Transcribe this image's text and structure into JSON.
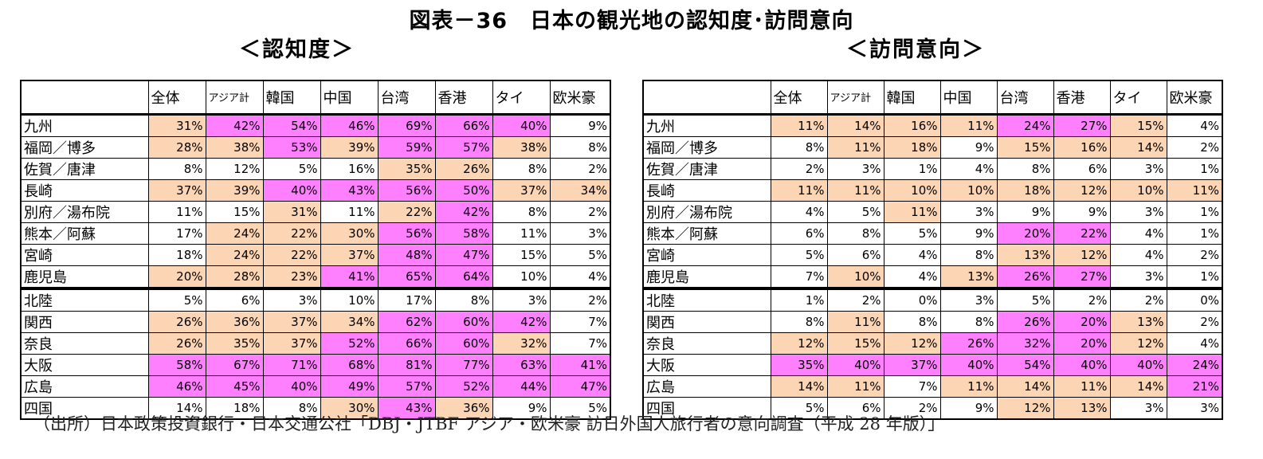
{
  "title": "図表－36　日本の観光地の認知度･訪問意向",
  "source": "（出所）日本政策投資銀行・日本交通公社「DBJ・JTBF アジア・欧米豪 訪日外国人旅行者の意向調査（平成 28 年版）」",
  "colors": {
    "orange": "#fcd5b4",
    "pink": "#ff80ff",
    "white": "#ffffff"
  },
  "chart_data": [
    {
      "type": "table",
      "title": "＜認知度＞",
      "columns": [
        "全体",
        "アジア計",
        "韓国",
        "中国",
        "台湾",
        "香港",
        "タイ",
        "欧米豪"
      ],
      "rows": [
        {
          "name": "九州",
          "values": [
            "31%",
            "42%",
            "54%",
            "46%",
            "69%",
            "66%",
            "40%",
            "9%"
          ],
          "shade": [
            "o",
            "p",
            "p",
            "p",
            "p",
            "p",
            "p",
            "w"
          ]
        },
        {
          "name": "福岡／博多",
          "values": [
            "28%",
            "38%",
            "53%",
            "39%",
            "59%",
            "57%",
            "38%",
            "8%"
          ],
          "shade": [
            "o",
            "o",
            "p",
            "o",
            "p",
            "p",
            "o",
            "w"
          ]
        },
        {
          "name": "佐賀／唐津",
          "values": [
            "8%",
            "12%",
            "5%",
            "16%",
            "35%",
            "26%",
            "8%",
            "2%"
          ],
          "shade": [
            "w",
            "w",
            "w",
            "w",
            "o",
            "o",
            "w",
            "w"
          ]
        },
        {
          "name": "長崎",
          "values": [
            "37%",
            "39%",
            "40%",
            "43%",
            "56%",
            "50%",
            "37%",
            "34%"
          ],
          "shade": [
            "o",
            "o",
            "p",
            "p",
            "p",
            "p",
            "o",
            "o"
          ]
        },
        {
          "name": "別府／湯布院",
          "values": [
            "11%",
            "15%",
            "31%",
            "11%",
            "22%",
            "42%",
            "8%",
            "2%"
          ],
          "shade": [
            "w",
            "w",
            "o",
            "w",
            "o",
            "p",
            "w",
            "w"
          ]
        },
        {
          "name": "熊本／阿蘇",
          "values": [
            "17%",
            "24%",
            "22%",
            "30%",
            "56%",
            "58%",
            "11%",
            "3%"
          ],
          "shade": [
            "w",
            "o",
            "o",
            "o",
            "p",
            "p",
            "w",
            "w"
          ]
        },
        {
          "name": "宮崎",
          "values": [
            "18%",
            "24%",
            "22%",
            "37%",
            "48%",
            "47%",
            "15%",
            "5%"
          ],
          "shade": [
            "w",
            "o",
            "o",
            "o",
            "p",
            "p",
            "w",
            "w"
          ]
        },
        {
          "name": "鹿児島",
          "values": [
            "20%",
            "28%",
            "23%",
            "41%",
            "65%",
            "64%",
            "10%",
            "4%"
          ],
          "shade": [
            "o",
            "o",
            "o",
            "p",
            "p",
            "p",
            "w",
            "w"
          ]
        },
        {
          "name": "北陸",
          "values": [
            "5%",
            "6%",
            "3%",
            "10%",
            "17%",
            "8%",
            "3%",
            "2%"
          ],
          "shade": [
            "w",
            "w",
            "w",
            "w",
            "w",
            "w",
            "w",
            "w"
          ]
        },
        {
          "name": "関西",
          "values": [
            "26%",
            "36%",
            "37%",
            "34%",
            "62%",
            "60%",
            "42%",
            "7%"
          ],
          "shade": [
            "o",
            "o",
            "o",
            "o",
            "p",
            "p",
            "p",
            "w"
          ]
        },
        {
          "name": "奈良",
          "values": [
            "26%",
            "35%",
            "37%",
            "52%",
            "66%",
            "60%",
            "32%",
            "7%"
          ],
          "shade": [
            "o",
            "o",
            "o",
            "p",
            "p",
            "p",
            "o",
            "w"
          ]
        },
        {
          "name": "大阪",
          "values": [
            "58%",
            "67%",
            "71%",
            "68%",
            "81%",
            "77%",
            "63%",
            "41%"
          ],
          "shade": [
            "p",
            "p",
            "p",
            "p",
            "p",
            "p",
            "p",
            "p"
          ]
        },
        {
          "name": "広島",
          "values": [
            "46%",
            "45%",
            "40%",
            "49%",
            "57%",
            "52%",
            "44%",
            "47%"
          ],
          "shade": [
            "p",
            "p",
            "p",
            "p",
            "p",
            "p",
            "p",
            "p"
          ]
        },
        {
          "name": "四国",
          "values": [
            "14%",
            "18%",
            "8%",
            "30%",
            "43%",
            "36%",
            "9%",
            "5%"
          ],
          "shade": [
            "w",
            "w",
            "w",
            "o",
            "p",
            "o",
            "w",
            "w"
          ]
        }
      ]
    },
    {
      "type": "table",
      "title": "＜訪問意向＞",
      "columns": [
        "全体",
        "アジア計",
        "韓国",
        "中国",
        "台湾",
        "香港",
        "タイ",
        "欧米豪"
      ],
      "rows": [
        {
          "name": "九州",
          "values": [
            "11%",
            "14%",
            "16%",
            "11%",
            "24%",
            "27%",
            "15%",
            "4%"
          ],
          "shade": [
            "o",
            "o",
            "o",
            "o",
            "p",
            "p",
            "o",
            "w"
          ]
        },
        {
          "name": "福岡／博多",
          "values": [
            "8%",
            "11%",
            "18%",
            "9%",
            "15%",
            "16%",
            "14%",
            "2%"
          ],
          "shade": [
            "w",
            "o",
            "o",
            "w",
            "o",
            "o",
            "o",
            "w"
          ]
        },
        {
          "name": "佐賀／唐津",
          "values": [
            "2%",
            "3%",
            "1%",
            "4%",
            "8%",
            "6%",
            "3%",
            "1%"
          ],
          "shade": [
            "w",
            "w",
            "w",
            "w",
            "w",
            "w",
            "w",
            "w"
          ]
        },
        {
          "name": "長崎",
          "values": [
            "11%",
            "11%",
            "10%",
            "10%",
            "18%",
            "12%",
            "10%",
            "11%"
          ],
          "shade": [
            "o",
            "o",
            "o",
            "o",
            "o",
            "o",
            "o",
            "o"
          ]
        },
        {
          "name": "別府／湯布院",
          "values": [
            "4%",
            "5%",
            "11%",
            "3%",
            "9%",
            "9%",
            "3%",
            "1%"
          ],
          "shade": [
            "w",
            "w",
            "o",
            "w",
            "w",
            "w",
            "w",
            "w"
          ]
        },
        {
          "name": "熊本／阿蘇",
          "values": [
            "6%",
            "8%",
            "5%",
            "9%",
            "20%",
            "22%",
            "4%",
            "1%"
          ],
          "shade": [
            "w",
            "w",
            "w",
            "w",
            "p",
            "p",
            "w",
            "w"
          ]
        },
        {
          "name": "宮崎",
          "values": [
            "5%",
            "6%",
            "4%",
            "8%",
            "13%",
            "12%",
            "4%",
            "2%"
          ],
          "shade": [
            "w",
            "w",
            "w",
            "w",
            "o",
            "o",
            "w",
            "w"
          ]
        },
        {
          "name": "鹿児島",
          "values": [
            "7%",
            "10%",
            "4%",
            "13%",
            "26%",
            "27%",
            "3%",
            "1%"
          ],
          "shade": [
            "w",
            "o",
            "w",
            "o",
            "p",
            "p",
            "w",
            "w"
          ]
        },
        {
          "name": "北陸",
          "values": [
            "1%",
            "2%",
            "0%",
            "3%",
            "5%",
            "2%",
            "2%",
            "0%"
          ],
          "shade": [
            "w",
            "w",
            "w",
            "w",
            "w",
            "w",
            "w",
            "w"
          ]
        },
        {
          "name": "関西",
          "values": [
            "8%",
            "11%",
            "8%",
            "8%",
            "26%",
            "20%",
            "13%",
            "2%"
          ],
          "shade": [
            "w",
            "o",
            "w",
            "w",
            "p",
            "p",
            "o",
            "w"
          ]
        },
        {
          "name": "奈良",
          "values": [
            "12%",
            "15%",
            "12%",
            "26%",
            "32%",
            "20%",
            "12%",
            "4%"
          ],
          "shade": [
            "o",
            "o",
            "o",
            "p",
            "p",
            "p",
            "o",
            "w"
          ]
        },
        {
          "name": "大阪",
          "values": [
            "35%",
            "40%",
            "37%",
            "40%",
            "54%",
            "40%",
            "40%",
            "24%"
          ],
          "shade": [
            "p",
            "p",
            "p",
            "p",
            "p",
            "p",
            "p",
            "p"
          ]
        },
        {
          "name": "広島",
          "values": [
            "14%",
            "11%",
            "7%",
            "11%",
            "14%",
            "11%",
            "14%",
            "21%"
          ],
          "shade": [
            "o",
            "o",
            "w",
            "o",
            "o",
            "o",
            "o",
            "p"
          ]
        },
        {
          "name": "四国",
          "values": [
            "5%",
            "6%",
            "2%",
            "9%",
            "12%",
            "13%",
            "3%",
            "3%"
          ],
          "shade": [
            "w",
            "w",
            "w",
            "w",
            "o",
            "o",
            "w",
            "w"
          ]
        }
      ]
    }
  ]
}
